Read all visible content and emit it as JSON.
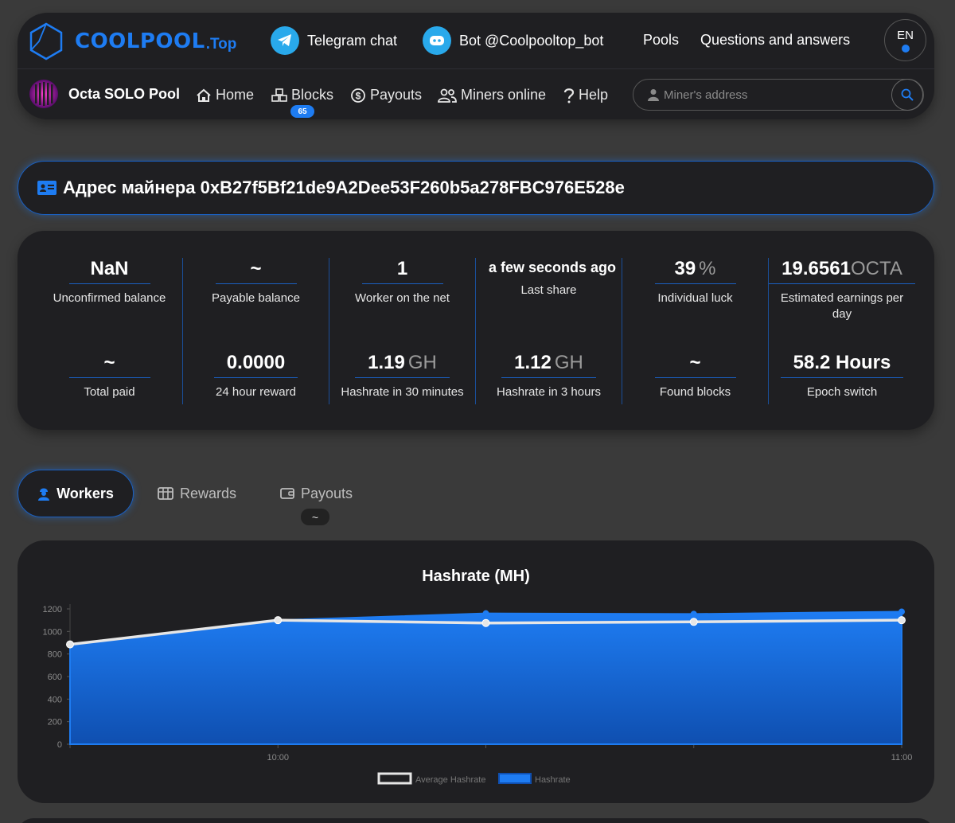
{
  "header": {
    "logo": {
      "brand": "COOLPOOL",
      "tld": ".Top"
    },
    "links": [
      {
        "label": "Telegram chat",
        "icon": "telegram-icon"
      },
      {
        "label": "Bot @Coolpooltop_bot",
        "icon": "bot-icon"
      },
      {
        "label": "Pools"
      },
      {
        "label": "Questions and answers"
      }
    ],
    "lang": "EN",
    "pool_name": "Octa SOLO Pool",
    "nav": [
      {
        "label": "Home",
        "icon": "home-icon"
      },
      {
        "label": "Blocks",
        "icon": "blocks-icon",
        "badge": "65"
      },
      {
        "label": "Payouts",
        "icon": "dollar-coin-icon"
      },
      {
        "label": "Miners online",
        "icon": "users-icon"
      },
      {
        "label": "Help",
        "icon": "question-icon"
      }
    ],
    "search": {
      "placeholder": "Miner's address"
    }
  },
  "miner": {
    "title": "Адрес майнера 0xB27f5Bf21de9A2Dee53F260b5a278FBC976E528e"
  },
  "stats": {
    "top": [
      {
        "value": "NaN",
        "unit": "",
        "label": "Unconfirmed balance"
      },
      {
        "value": "~",
        "unit": "",
        "label": "Payable balance"
      },
      {
        "value": "1",
        "unit": "",
        "label": "Worker on the net"
      },
      {
        "value": "a few seconds ago",
        "unit": "",
        "label": "Last share"
      },
      {
        "value": "39",
        "unit": "%",
        "label": "Individual luck"
      },
      {
        "value": "19.6561",
        "unit": "OCTA",
        "label": "Estimated earnings per day"
      }
    ],
    "bottom": [
      {
        "value": "~",
        "unit": "",
        "label": "Total paid"
      },
      {
        "value": "0.0000",
        "unit": "",
        "label": "24 hour reward"
      },
      {
        "value": "1.19",
        "unit": "GH",
        "label": "Hashrate in 30 minutes"
      },
      {
        "value": "1.12",
        "unit": "GH",
        "label": "Hashrate in 3 hours"
      },
      {
        "value": "~",
        "unit": "",
        "label": "Found blocks"
      },
      {
        "value": "58.2 Hours",
        "unit": "",
        "label": "Epoch switch"
      }
    ]
  },
  "tabs": [
    {
      "label": "Workers",
      "icon": "worker-icon"
    },
    {
      "label": "Rewards",
      "icon": "rewards-icon"
    },
    {
      "label": "Payouts",
      "icon": "wallet-icon",
      "badge": "~"
    }
  ],
  "colors": {
    "accent": "#1e7cf2",
    "panel": "#1f1f22",
    "background": "#3a3a3a"
  },
  "chart_data": {
    "type": "area",
    "title": "Hashrate (MH)",
    "ylim": [
      0,
      1200
    ],
    "yticks": [
      0,
      200,
      400,
      600,
      800,
      1000,
      1200
    ],
    "x_tick_labels": [
      {
        "label": "10:00",
        "x": 1
      },
      {
        "label": "11:00",
        "x": 4
      }
    ],
    "x": [
      0,
      1,
      2,
      3,
      4
    ],
    "series": [
      {
        "name": "Average Hashrate",
        "style": "line",
        "color": "#e6e6e6",
        "values": [
          885,
          1100,
          1075,
          1085,
          1100
        ]
      },
      {
        "name": "Hashrate",
        "style": "area",
        "color": "#1e7cf2",
        "values": [
          885,
          1100,
          1160,
          1155,
          1175
        ]
      }
    ],
    "legend": "bottom"
  }
}
